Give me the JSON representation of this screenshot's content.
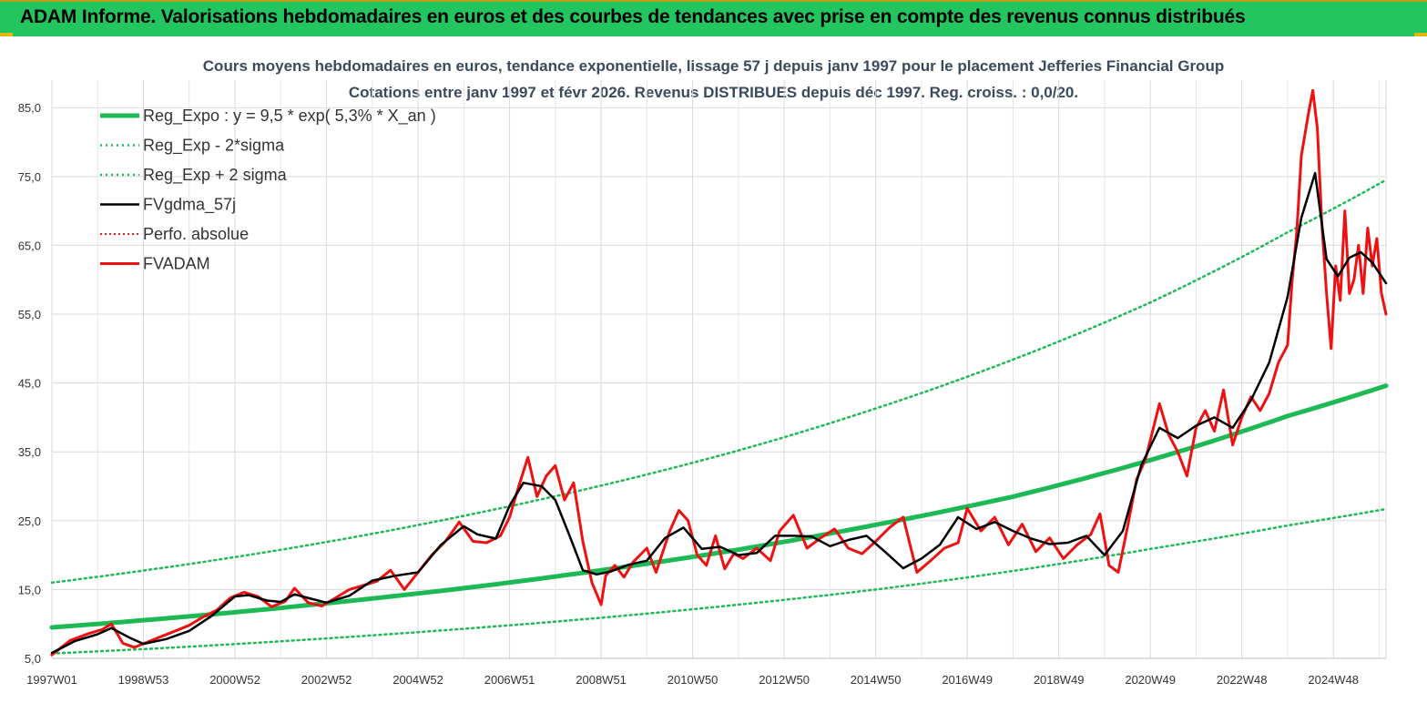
{
  "header": {
    "title": "ADAM Informe. Valorisations hebdomadaires en euros et des courbes de tendances avec prise en compte des revenus connus distribués"
  },
  "colors": {
    "banner": "#22c55e",
    "reg_expo": "#1db954",
    "sigma": "#1db954",
    "fvgdma": "#000000",
    "fvadam": "#ee1111",
    "perfo": "#dd2222"
  },
  "chart_data": {
    "type": "line",
    "title": "Cours moyens hebdomadaires en euros, tendance exponentielle, lissage 57 j depuis janv 1997 pour le placement Jefferies Financial Group",
    "subtitle": "Cotations entre janv 1997 et févr 2026. Revenus DISTRIBUES depuis déc 1997. Reg. croiss. : 0,0/20.",
    "xlabel": "",
    "ylabel": "",
    "ylim": [
      5,
      89
    ],
    "x_range": [
      1997.0,
      2026.15
    ],
    "y_ticks": [
      "5,0",
      "15,0",
      "25,0",
      "35,0",
      "45,0",
      "55,0",
      "65,0",
      "75,0",
      "85,0"
    ],
    "x_ticks": [
      "1997W01",
      "1998W53",
      "2000W52",
      "2002W52",
      "2004W52",
      "2006W51",
      "2008W51",
      "2010W50",
      "2012W50",
      "2014W50",
      "2016W49",
      "2018W49",
      "2020W49",
      "2022W48",
      "2024W48"
    ],
    "x_tick_years": [
      1997.0,
      1999.0,
      2001.0,
      2003.0,
      2005.0,
      2007.0,
      2009.0,
      2011.0,
      2013.0,
      2015.0,
      2017.0,
      2019.0,
      2021.0,
      2023.0,
      2025.0
    ],
    "grid": true,
    "legend_position": "top-left",
    "legend": [
      {
        "key": "reg_expo",
        "label": "Reg_Expo : y = 9,5 * exp( 5,3% *  X_an )"
      },
      {
        "key": "sigma_low",
        "label": "Reg_Exp - 2*sigma"
      },
      {
        "key": "sigma_high",
        "label": "Reg_Exp + 2 sigma"
      },
      {
        "key": "fvgdma",
        "label": "FVgdma_57j"
      },
      {
        "key": "perfo",
        "label": "Perfo. absolue"
      },
      {
        "key": "fvadam",
        "label": "FVADAM"
      }
    ],
    "series": [
      {
        "name": "Reg_Expo : y = 9,5 * exp( 5,3% *  X_an )",
        "key": "reg_expo",
        "x": [
          1997.0,
          2000.0,
          2003.0,
          2006.0,
          2009.0,
          2012.0,
          2015.0,
          2018.0,
          2021.0,
          2024.0,
          2026.15
        ],
        "y": [
          9.5,
          11.1,
          13.0,
          15.2,
          17.8,
          20.8,
          24.4,
          28.5,
          33.8,
          40.2,
          44.6
        ]
      },
      {
        "name": "Reg_Exp - 2*sigma",
        "key": "sigma_low",
        "x": [
          1997.0,
          2000.0,
          2003.0,
          2006.0,
          2009.0,
          2012.0,
          2015.0,
          2018.0,
          2021.0,
          2024.0,
          2026.15
        ],
        "y": [
          5.7,
          6.7,
          7.9,
          9.3,
          10.9,
          12.8,
          15.0,
          17.7,
          20.9,
          24.3,
          26.7
        ]
      },
      {
        "name": "Reg_Exp + 2 sigma",
        "key": "sigma_high",
        "x": [
          1997.0,
          2000.0,
          2003.0,
          2006.0,
          2009.0,
          2012.0,
          2015.0,
          2018.0,
          2021.0,
          2024.0,
          2026.15
        ],
        "y": [
          16.0,
          18.7,
          21.9,
          25.7,
          30.1,
          35.2,
          41.3,
          48.4,
          56.7,
          66.9,
          74.5
        ]
      },
      {
        "name": "FVgdma_57j",
        "key": "fvgdma",
        "x": [
          1997.0,
          1997.5,
          1998.0,
          1998.3,
          1998.7,
          1999.0,
          1999.5,
          2000.0,
          2000.5,
          2001.0,
          2001.3,
          2001.7,
          2002.0,
          2002.3,
          2002.7,
          2003.0,
          2003.5,
          2004.0,
          2004.5,
          2005.0,
          2005.5,
          2006.0,
          2006.3,
          2006.7,
          2007.0,
          2007.3,
          2007.7,
          2008.0,
          2008.3,
          2008.6,
          2008.9,
          2009.2,
          2009.6,
          2010.0,
          2010.4,
          2010.8,
          2011.2,
          2011.6,
          2012.0,
          2012.4,
          2012.8,
          2013.2,
          2013.6,
          2014.0,
          2014.4,
          2014.8,
          2015.2,
          2015.6,
          2016.0,
          2016.4,
          2016.8,
          2017.2,
          2017.6,
          2018.0,
          2018.4,
          2018.8,
          2019.2,
          2019.6,
          2020.0,
          2020.4,
          2020.8,
          2021.2,
          2021.6,
          2022.0,
          2022.4,
          2022.8,
          2023.2,
          2023.6,
          2024.0,
          2024.3,
          2024.6,
          2024.85,
          2025.1,
          2025.35,
          2025.6,
          2025.85,
          2026.15
        ],
        "y": [
          5.8,
          7.5,
          8.5,
          9.4,
          8.0,
          7.1,
          7.8,
          9.0,
          11.2,
          14.0,
          14.2,
          13.4,
          13.2,
          14.3,
          13.6,
          13.1,
          14.1,
          16.3,
          17.0,
          17.5,
          21.5,
          24.2,
          23.0,
          22.4,
          27.2,
          30.5,
          30.0,
          28.0,
          23.0,
          17.8,
          17.2,
          17.6,
          18.6,
          19.2,
          22.5,
          24.0,
          20.9,
          21.2,
          20.0,
          20.3,
          22.8,
          22.8,
          22.7,
          21.3,
          22.2,
          22.8,
          20.5,
          18.1,
          19.5,
          21.5,
          25.5,
          23.8,
          24.8,
          23.5,
          22.4,
          21.6,
          21.8,
          22.8,
          20.0,
          23.5,
          33.0,
          38.5,
          37.0,
          38.8,
          40.0,
          38.5,
          42.5,
          48.0,
          57.5,
          69.0,
          75.5,
          63.0,
          60.5,
          63.2,
          64.0,
          62.5,
          59.5
        ]
      },
      {
        "name": "FVADAM",
        "key": "fvadam",
        "x": [
          1997.0,
          1997.4,
          1997.8,
          1998.1,
          1998.3,
          1998.55,
          1998.8,
          1999.1,
          1999.4,
          1999.7,
          2000.0,
          2000.3,
          2000.6,
          2000.9,
          2001.2,
          2001.5,
          2001.8,
          2002.1,
          2002.3,
          2002.6,
          2002.9,
          2003.2,
          2003.5,
          2003.8,
          2004.1,
          2004.4,
          2004.7,
          2005.0,
          2005.3,
          2005.6,
          2005.9,
          2006.2,
          2006.5,
          2006.8,
          2007.0,
          2007.2,
          2007.4,
          2007.6,
          2007.8,
          2008.0,
          2008.2,
          2008.4,
          2008.6,
          2008.8,
          2009.0,
          2009.1,
          2009.3,
          2009.5,
          2009.7,
          2010.0,
          2010.2,
          2010.5,
          2010.7,
          2010.9,
          2011.1,
          2011.3,
          2011.5,
          2011.7,
          2011.9,
          2012.1,
          2012.4,
          2012.7,
          2012.9,
          2013.2,
          2013.5,
          2013.8,
          2014.1,
          2014.4,
          2014.7,
          2015.0,
          2015.3,
          2015.6,
          2015.9,
          2016.2,
          2016.5,
          2016.8,
          2017.0,
          2017.3,
          2017.6,
          2017.9,
          2018.2,
          2018.5,
          2018.8,
          2019.1,
          2019.4,
          2019.7,
          2019.9,
          2020.1,
          2020.3,
          2020.5,
          2020.7,
          2020.9,
          2021.2,
          2021.4,
          2021.6,
          2021.8,
          2022.0,
          2022.2,
          2022.4,
          2022.6,
          2022.8,
          2023.0,
          2023.2,
          2023.4,
          2023.6,
          2023.8,
          2024.0,
          2024.1,
          2024.2,
          2024.3,
          2024.45,
          2024.55,
          2024.65,
          2024.75,
          2024.85,
          2024.95,
          2025.05,
          2025.15,
          2025.25,
          2025.35,
          2025.45,
          2025.55,
          2025.65,
          2025.75,
          2025.85,
          2025.95,
          2026.05,
          2026.15
        ],
        "y": [
          5.5,
          7.6,
          8.6,
          9.2,
          10.0,
          7.2,
          6.6,
          7.4,
          8.2,
          9.0,
          9.8,
          11.0,
          12.0,
          13.8,
          14.6,
          14.0,
          12.5,
          13.3,
          15.2,
          13.1,
          12.6,
          13.8,
          15.0,
          15.6,
          16.2,
          17.8,
          15.0,
          17.5,
          20.0,
          22.0,
          24.8,
          22.0,
          21.8,
          22.8,
          25.5,
          30.0,
          34.2,
          28.5,
          31.5,
          33.0,
          28.0,
          30.5,
          22.0,
          16.0,
          12.8,
          17.0,
          18.5,
          16.8,
          19.0,
          21.0,
          17.5,
          23.5,
          26.5,
          25.0,
          20.0,
          18.5,
          22.8,
          18.0,
          20.2,
          19.5,
          21.0,
          19.2,
          23.5,
          25.8,
          21.0,
          22.5,
          23.8,
          21.0,
          20.2,
          22.0,
          24.0,
          25.5,
          17.5,
          19.2,
          21.0,
          21.8,
          26.8,
          23.5,
          25.5,
          21.5,
          24.5,
          20.5,
          22.5,
          19.5,
          21.5,
          23.0,
          26.0,
          18.5,
          17.5,
          24.0,
          31.0,
          34.0,
          42.0,
          37.5,
          35.0,
          31.5,
          38.5,
          41.0,
          38.0,
          44.0,
          36.0,
          40.0,
          43.0,
          41.0,
          43.5,
          48.0,
          50.5,
          60.0,
          67.0,
          78.0,
          84.0,
          87.5,
          82.0,
          68.0,
          58.0,
          50.0,
          62.0,
          57.0,
          70.0,
          58.0,
          60.0,
          65.0,
          58.0,
          67.5,
          62.0,
          66.0,
          58.0,
          55.0
        ]
      }
    ]
  }
}
